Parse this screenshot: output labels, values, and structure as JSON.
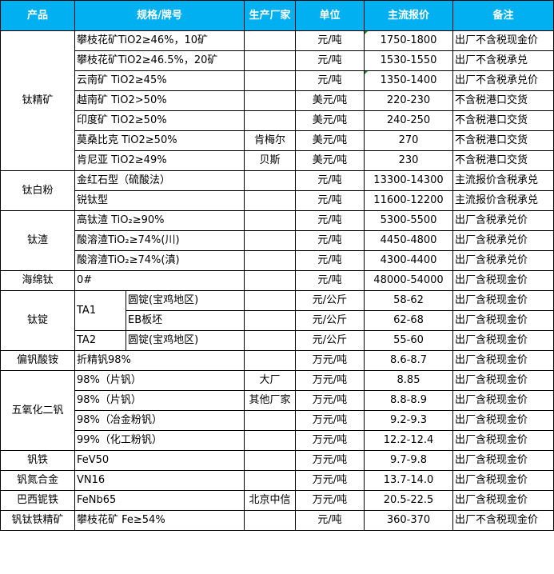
{
  "header": {
    "product": "产品",
    "spec": "规格/牌号",
    "maker": "生产厂家",
    "unit": "单位",
    "price": "主流报价",
    "note": "备注"
  },
  "colors": {
    "header_bg": "#00b0f0",
    "header_text": "#ffffff"
  },
  "groups": {
    "g0": "钛精矿",
    "g1": "钛白粉",
    "g2": "钛渣",
    "g3": "海绵钛",
    "g4": "钛锭",
    "g5": "偏钒酸铵",
    "g6": "五氧化二钒",
    "g7": "钒铁",
    "g8": "钒氮合金",
    "g9": "巴西铌铁",
    "g10": "钒钛铁精矿",
    "ta1": "TA1",
    "ta2": "TA2"
  },
  "rows": [
    {
      "spec": "攀枝花矿TiO2≥46%，10矿",
      "maker": "",
      "unit": "元/吨",
      "price": "1750-1800",
      "note": "出厂不含税现金价"
    },
    {
      "spec": "攀枝花矿TiO2≥46.5%，20矿",
      "maker": "",
      "unit": "元/吨",
      "price": "1530-1550",
      "note": "出厂不含税承兑"
    },
    {
      "spec": "云南矿 TiO2≥45%",
      "maker": "",
      "unit": "元/吨",
      "price": "1350-1400",
      "note": "出厂不含税承兑价"
    },
    {
      "spec": "越南矿 TiO2>50%",
      "maker": "",
      "unit": "美元/吨",
      "price": "220-230",
      "note": "不含税港口交货"
    },
    {
      "spec": "印度矿 TiO2≥50%",
      "maker": "",
      "unit": "美元/吨",
      "price": "240-250",
      "note": "不含税港口交货"
    },
    {
      "spec": "莫桑比克 TiO2≥50%",
      "maker": "肯梅尔",
      "unit": "美元/吨",
      "price": "270",
      "note": "不含税港口交货"
    },
    {
      "spec": "肯尼亚 TiO2≥49%",
      "maker": "贝斯",
      "unit": "美元/吨",
      "price": "230",
      "note": "不含税港口交货"
    },
    {
      "spec": "金红石型（硫酸法）",
      "maker": "",
      "unit": "元/吨",
      "price": "13300-14300",
      "note": "主流报价含税承兑"
    },
    {
      "spec": "锐钛型",
      "maker": "",
      "unit": "元/吨",
      "price": "11600-12200",
      "note": "主流报价含税承兑"
    },
    {
      "spec": "高钛渣 TiO₂≥90%",
      "maker": "",
      "unit": "元/吨",
      "price": "5300-5500",
      "note": "出厂含税承兑价"
    },
    {
      "spec": "酸溶渣TiO₂≥74%(川)",
      "maker": "",
      "unit": "元/吨",
      "price": "4450-4800",
      "note": "出厂含税承兑价"
    },
    {
      "spec": "酸溶渣TiO₂≥74%(滇)",
      "maker": "",
      "unit": "元/吨",
      "price": "4300-4400",
      "note": "出厂含税承兑价"
    },
    {
      "spec": "0#",
      "maker": "",
      "unit": "元/吨",
      "price": "48000-54000",
      "note": "出厂含税现金价"
    },
    {
      "spec": "圆锭(宝鸡地区)",
      "maker": "",
      "unit": "元/公斤",
      "price": "58-62",
      "note": "出厂含税现金价"
    },
    {
      "spec": "EB板坯",
      "maker": "",
      "unit": "元/公斤",
      "price": "62-68",
      "note": "出厂含税现金价"
    },
    {
      "spec": "圆锭(宝鸡地区)",
      "maker": "",
      "unit": "元/公斤",
      "price": "55-60",
      "note": "出厂含税现金价"
    },
    {
      "spec": "折精钒98%",
      "maker": "",
      "unit": "万元/吨",
      "price": "8.6-8.7",
      "note": "出厂含税现金价"
    },
    {
      "spec": "98%（片钒）",
      "maker": "大厂",
      "unit": "万元/吨",
      "price": "8.85",
      "note": "出厂含税现金价"
    },
    {
      "spec": "98%（片钒）",
      "maker": "其他厂家",
      "unit": "万元/吨",
      "price": "8.8-8.9",
      "note": "出厂含税现金价"
    },
    {
      "spec": "98%（冶金粉钒）",
      "maker": "",
      "unit": "万元/吨",
      "price": "9.2-9.3",
      "note": "出厂含税现金价"
    },
    {
      "spec": "99%（化工粉钒）",
      "maker": "",
      "unit": "万元/吨",
      "price": "12.2-12.4",
      "note": "出厂含税现金价"
    },
    {
      "spec": "FeV50",
      "maker": "",
      "unit": "万元/吨",
      "price": "9.7-9.8",
      "note": "出厂含税现金价"
    },
    {
      "spec": "VN16",
      "maker": "",
      "unit": "万元/吨",
      "price": "13.7-14.0",
      "note": "出厂含税现金价"
    },
    {
      "spec": "FeNb65",
      "maker": "北京中信",
      "unit": "万元/吨",
      "price": "20.5-22.5",
      "note": "出厂含税现金价"
    },
    {
      "spec": "攀枝花矿 Fe≥54%",
      "maker": "",
      "unit": "元/吨",
      "price": "360-370",
      "note": "出厂不含税现金价"
    }
  ]
}
